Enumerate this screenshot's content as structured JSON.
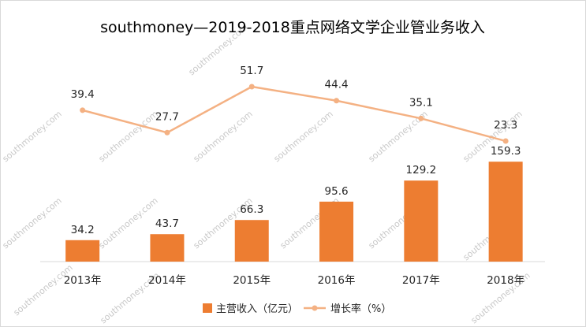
{
  "chart_data": {
    "type": "bar+line",
    "title": "southmoney—2019-2018重点网络文学企业管业务收入",
    "categories": [
      "2013年",
      "2014年",
      "2015年",
      "2016年",
      "2017年",
      "2018年"
    ],
    "series": [
      {
        "name": "主营收入（亿元）",
        "type": "bar",
        "color": "#ed7d31",
        "values": [
          34.2,
          43.7,
          66.3,
          95.6,
          129.2,
          159.3
        ]
      },
      {
        "name": "增长率（%）",
        "type": "line",
        "color": "#f4b183",
        "values": [
          39.4,
          27.7,
          51.7,
          44.4,
          35.1,
          23.3
        ]
      }
    ],
    "legend_position": "bottom",
    "grid": false,
    "watermark": "southmoney.com"
  }
}
